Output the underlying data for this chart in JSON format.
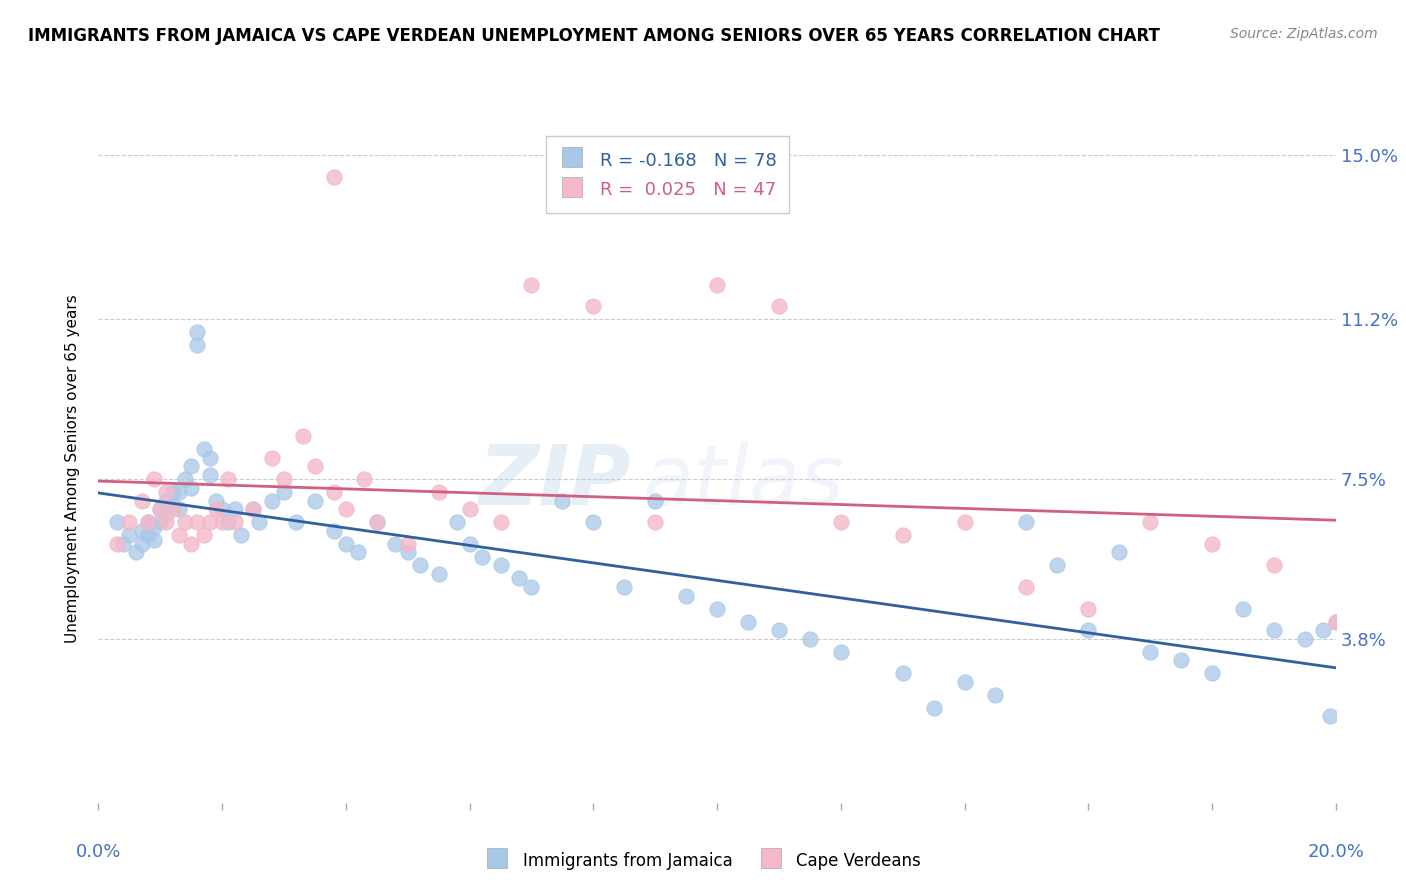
{
  "title": "IMMIGRANTS FROM JAMAICA VS CAPE VERDEAN UNEMPLOYMENT AMONG SENIORS OVER 65 YEARS CORRELATION CHART",
  "source": "Source: ZipAtlas.com",
  "blue_R": -0.168,
  "blue_N": 78,
  "pink_R": 0.025,
  "pink_N": 47,
  "blue_color": "#a8c8e8",
  "pink_color": "#f4b8c8",
  "blue_line_color": "#3060a0",
  "pink_line_color": "#d06080",
  "legend_label_blue": "Immigrants from Jamaica",
  "legend_label_pink": "Cape Verdeans",
  "watermark_zip": "ZIP",
  "watermark_atlas": "atlas",
  "xlim": [
    0.0,
    0.2
  ],
  "ylim": [
    0.0,
    0.155
  ],
  "ytick_vals": [
    0.038,
    0.075,
    0.112,
    0.15
  ],
  "ytick_labels": [
    "3.8%",
    "7.5%",
    "11.2%",
    "15.0%"
  ],
  "background_color": "#ffffff",
  "grid_color": "#cccccc",
  "title_fontsize": 12,
  "source_fontsize": 10,
  "tick_label_color": "#4472c4",
  "ylabel_text": "Unemployment Among Seniors over 65 years",
  "blue_x": [
    0.003,
    0.004,
    0.005,
    0.006,
    0.007,
    0.007,
    0.008,
    0.008,
    0.009,
    0.009,
    0.01,
    0.01,
    0.011,
    0.011,
    0.012,
    0.012,
    0.013,
    0.013,
    0.014,
    0.015,
    0.015,
    0.016,
    0.016,
    0.017,
    0.018,
    0.018,
    0.019,
    0.02,
    0.021,
    0.022,
    0.023,
    0.025,
    0.026,
    0.028,
    0.03,
    0.032,
    0.035,
    0.038,
    0.04,
    0.042,
    0.045,
    0.048,
    0.05,
    0.052,
    0.055,
    0.058,
    0.06,
    0.062,
    0.065,
    0.068,
    0.07,
    0.075,
    0.08,
    0.085,
    0.09,
    0.095,
    0.1,
    0.105,
    0.11,
    0.115,
    0.12,
    0.13,
    0.14,
    0.15,
    0.155,
    0.16,
    0.165,
    0.17,
    0.175,
    0.18,
    0.185,
    0.19,
    0.195,
    0.198,
    0.199,
    0.2,
    0.135,
    0.145
  ],
  "blue_y": [
    0.065,
    0.06,
    0.062,
    0.058,
    0.063,
    0.06,
    0.065,
    0.062,
    0.064,
    0.061,
    0.068,
    0.065,
    0.07,
    0.067,
    0.072,
    0.069,
    0.072,
    0.068,
    0.075,
    0.078,
    0.073,
    0.109,
    0.106,
    0.082,
    0.08,
    0.076,
    0.07,
    0.068,
    0.065,
    0.068,
    0.062,
    0.068,
    0.065,
    0.07,
    0.072,
    0.065,
    0.07,
    0.063,
    0.06,
    0.058,
    0.065,
    0.06,
    0.058,
    0.055,
    0.053,
    0.065,
    0.06,
    0.057,
    0.055,
    0.052,
    0.05,
    0.07,
    0.065,
    0.05,
    0.07,
    0.048,
    0.045,
    0.042,
    0.04,
    0.038,
    0.035,
    0.03,
    0.028,
    0.065,
    0.055,
    0.04,
    0.058,
    0.035,
    0.033,
    0.03,
    0.045,
    0.04,
    0.038,
    0.04,
    0.02,
    0.042,
    0.022,
    0.025
  ],
  "pink_x": [
    0.003,
    0.005,
    0.007,
    0.008,
    0.009,
    0.01,
    0.011,
    0.011,
    0.012,
    0.013,
    0.014,
    0.015,
    0.016,
    0.017,
    0.018,
    0.019,
    0.02,
    0.021,
    0.022,
    0.025,
    0.028,
    0.03,
    0.033,
    0.035,
    0.038,
    0.04,
    0.043,
    0.045,
    0.05,
    0.055,
    0.06,
    0.065,
    0.07,
    0.08,
    0.09,
    0.1,
    0.11,
    0.12,
    0.13,
    0.14,
    0.15,
    0.16,
    0.17,
    0.18,
    0.19,
    0.2,
    0.038
  ],
  "pink_y": [
    0.06,
    0.065,
    0.07,
    0.065,
    0.075,
    0.068,
    0.072,
    0.065,
    0.068,
    0.062,
    0.065,
    0.06,
    0.065,
    0.062,
    0.065,
    0.068,
    0.065,
    0.075,
    0.065,
    0.068,
    0.08,
    0.075,
    0.085,
    0.078,
    0.072,
    0.068,
    0.075,
    0.065,
    0.06,
    0.072,
    0.068,
    0.065,
    0.12,
    0.115,
    0.065,
    0.12,
    0.115,
    0.065,
    0.062,
    0.065,
    0.05,
    0.045,
    0.065,
    0.06,
    0.055,
    0.042,
    0.145
  ]
}
